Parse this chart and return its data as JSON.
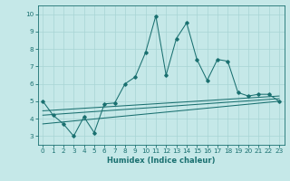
{
  "xlabel": "Humidex (Indice chaleur)",
  "xlim": [
    -0.5,
    23.5
  ],
  "ylim": [
    2.5,
    10.5
  ],
  "xticks": [
    0,
    1,
    2,
    3,
    4,
    5,
    6,
    7,
    8,
    9,
    10,
    11,
    12,
    13,
    14,
    15,
    16,
    17,
    18,
    19,
    20,
    21,
    22,
    23
  ],
  "yticks": [
    3,
    4,
    5,
    6,
    7,
    8,
    9,
    10
  ],
  "bg_color": "#c5e8e8",
  "grid_color": "#a8d4d4",
  "line_color": "#1a7070",
  "line1_x": [
    0,
    1,
    2,
    3,
    4,
    5,
    6,
    7,
    8,
    9,
    10,
    11,
    12,
    13,
    14,
    15,
    16,
    17,
    18,
    19,
    20,
    21,
    22,
    23
  ],
  "line1_y": [
    5.0,
    4.2,
    3.7,
    3.0,
    4.1,
    3.2,
    4.85,
    4.9,
    6.0,
    6.4,
    7.8,
    9.9,
    6.5,
    8.6,
    9.5,
    7.4,
    6.2,
    7.4,
    7.3,
    5.5,
    5.3,
    5.4,
    5.4,
    5.0
  ],
  "line2_x": [
    0,
    23
  ],
  "line2_y": [
    4.2,
    5.15
  ],
  "line3_x": [
    0,
    23
  ],
  "line3_y": [
    4.45,
    5.3
  ],
  "line4_x": [
    0,
    23
  ],
  "line4_y": [
    3.7,
    5.0
  ]
}
